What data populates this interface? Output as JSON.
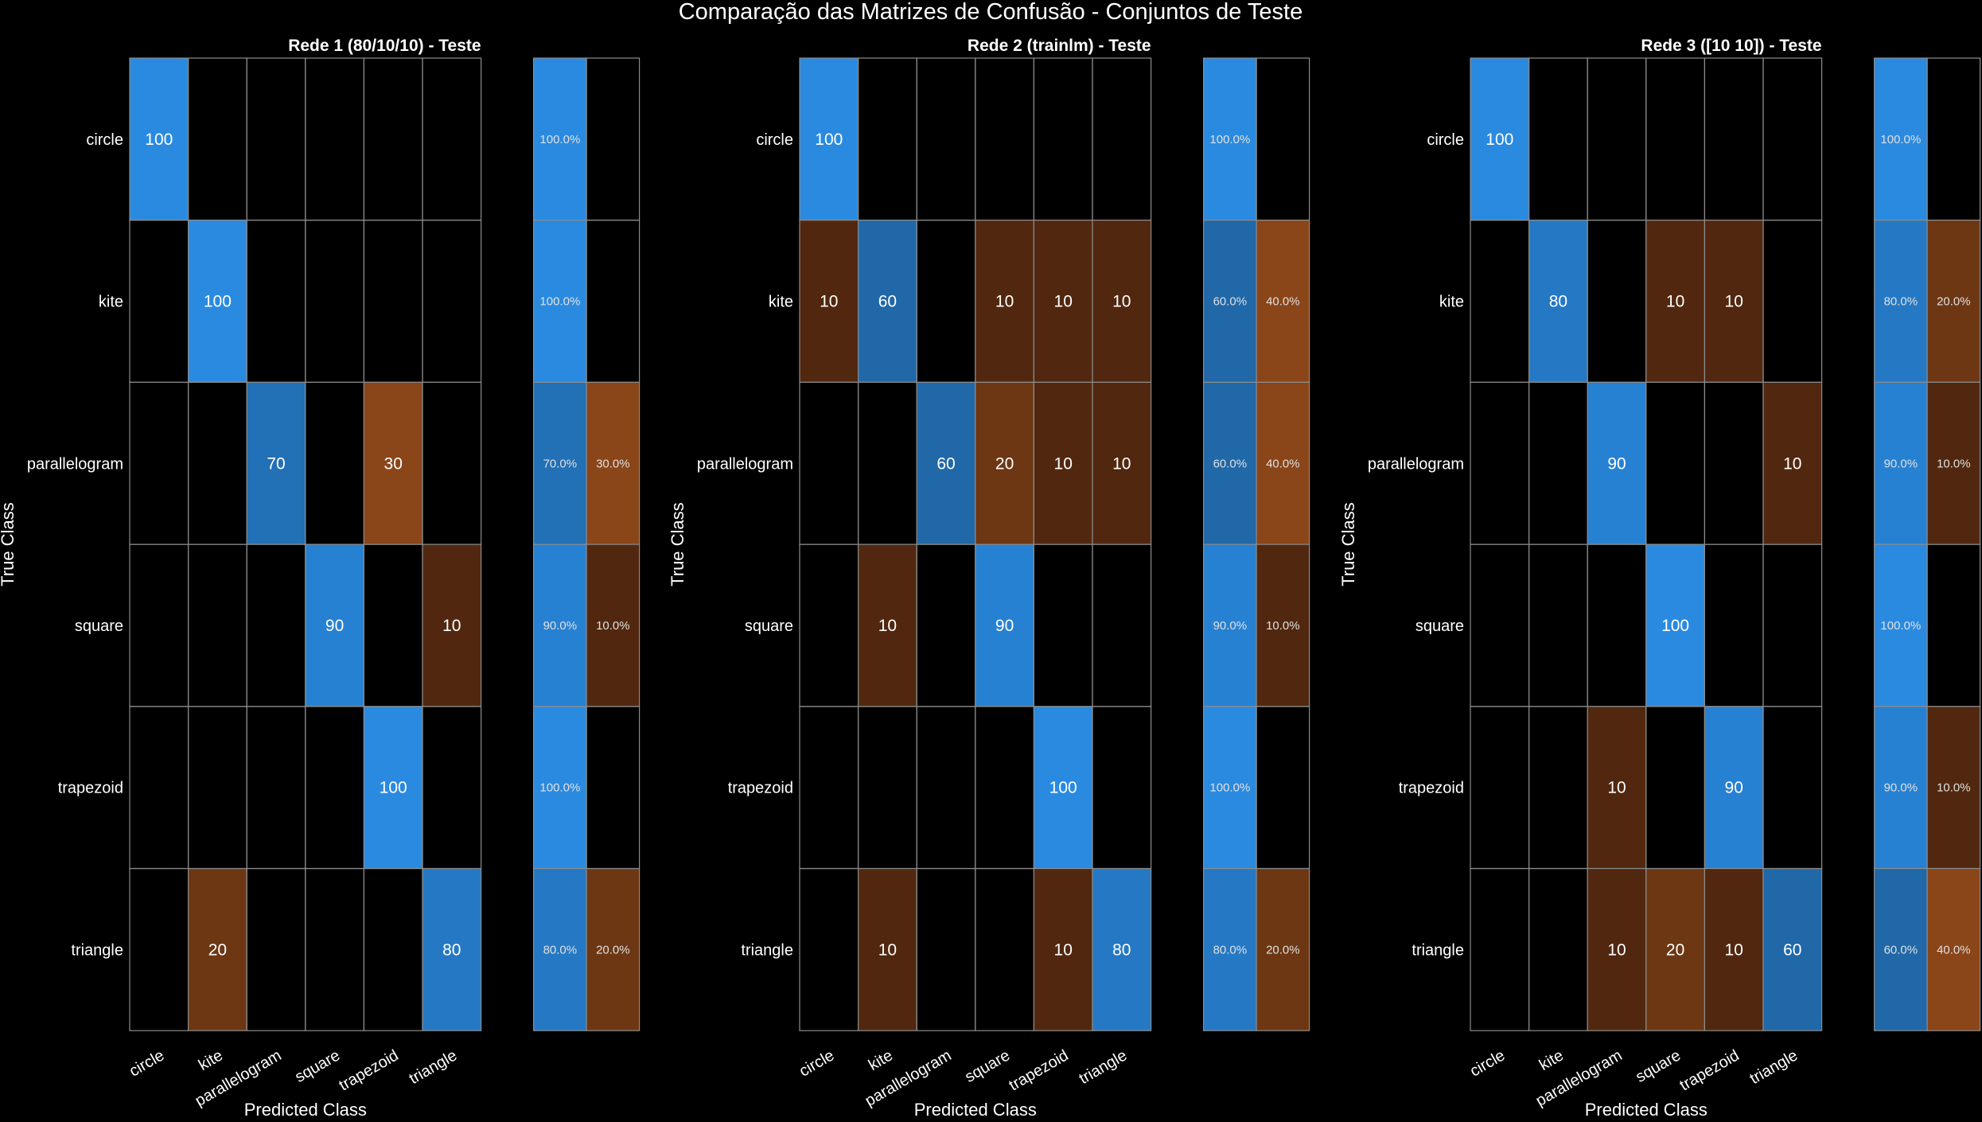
{
  "figure": {
    "title": "Comparação das Matrizes de Confusão - Conjuntos de Teste"
  },
  "colors": {
    "background": "#000000",
    "correct": "#2a8ae0",
    "incorrect": "#8a4519",
    "grid": "#8c8c8c",
    "text": "#ffffff"
  },
  "chart_data": [
    {
      "type": "heatmap",
      "title": "Rede 1 (80/10/10) - Teste",
      "xlabel": "Predicted Class",
      "ylabel": "True Class",
      "classes": [
        "circle",
        "kite",
        "parallelogram",
        "square",
        "trapezoid",
        "triangle"
      ],
      "matrix": [
        [
          100,
          0,
          0,
          0,
          0,
          0
        ],
        [
          0,
          100,
          0,
          0,
          0,
          0
        ],
        [
          0,
          0,
          70,
          0,
          30,
          0
        ],
        [
          0,
          0,
          0,
          90,
          0,
          10
        ],
        [
          0,
          0,
          0,
          0,
          100,
          0
        ],
        [
          0,
          20,
          0,
          0,
          0,
          80
        ]
      ],
      "row_summary": {
        "correct": [
          "100.0%",
          "100.0%",
          "70.0%",
          "90.0%",
          "100.0%",
          "80.0%"
        ],
        "incorrect": [
          "",
          "",
          "30.0%",
          "10.0%",
          "",
          "20.0%"
        ]
      }
    },
    {
      "type": "heatmap",
      "title": "Rede 2 (trainlm) - Teste",
      "xlabel": "Predicted Class",
      "ylabel": "True Class",
      "classes": [
        "circle",
        "kite",
        "parallelogram",
        "square",
        "trapezoid",
        "triangle"
      ],
      "matrix": [
        [
          100,
          0,
          0,
          0,
          0,
          0
        ],
        [
          10,
          60,
          0,
          10,
          10,
          10
        ],
        [
          0,
          0,
          60,
          20,
          10,
          10
        ],
        [
          0,
          10,
          0,
          90,
          0,
          0
        ],
        [
          0,
          0,
          0,
          0,
          100,
          0
        ],
        [
          0,
          10,
          0,
          0,
          10,
          80
        ]
      ],
      "row_summary": {
        "correct": [
          "100.0%",
          "60.0%",
          "60.0%",
          "90.0%",
          "100.0%",
          "80.0%"
        ],
        "incorrect": [
          "",
          "40.0%",
          "40.0%",
          "10.0%",
          "",
          "20.0%"
        ]
      }
    },
    {
      "type": "heatmap",
      "title": "Rede 3 ([10 10]) - Teste",
      "xlabel": "Predicted Class",
      "ylabel": "True Class",
      "classes": [
        "circle",
        "kite",
        "parallelogram",
        "square",
        "trapezoid",
        "triangle"
      ],
      "matrix": [
        [
          100,
          0,
          0,
          0,
          0,
          0
        ],
        [
          0,
          80,
          0,
          10,
          10,
          0
        ],
        [
          0,
          0,
          90,
          0,
          0,
          10
        ],
        [
          0,
          0,
          0,
          100,
          0,
          0
        ],
        [
          0,
          0,
          10,
          0,
          90,
          0
        ],
        [
          0,
          0,
          10,
          20,
          10,
          60
        ]
      ],
      "row_summary": {
        "correct": [
          "100.0%",
          "80.0%",
          "90.0%",
          "100.0%",
          "90.0%",
          "60.0%"
        ],
        "incorrect": [
          "",
          "20.0%",
          "10.0%",
          "",
          "10.0%",
          "40.0%"
        ]
      }
    }
  ]
}
